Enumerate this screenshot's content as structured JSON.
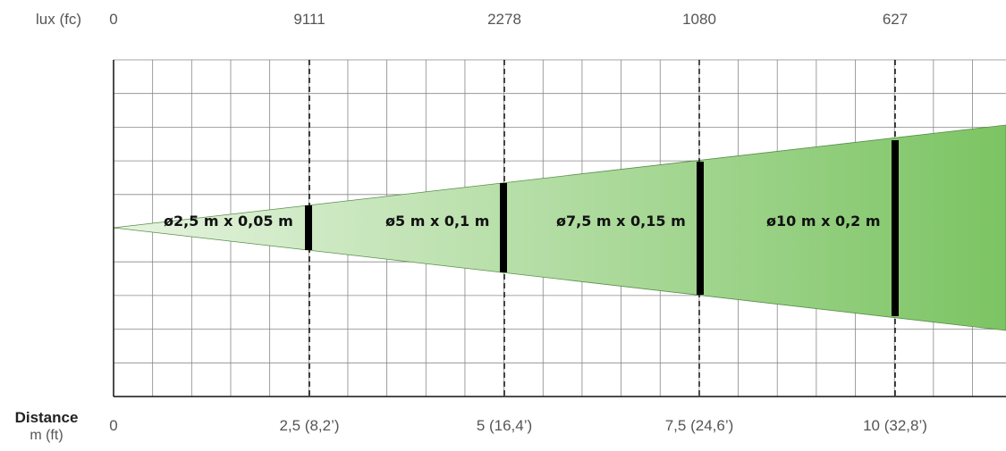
{
  "top_axis": {
    "label": "lux (fc)",
    "values": [
      "0",
      "9111",
      "2278",
      "1080",
      "627"
    ]
  },
  "bottom_axis": {
    "title": "Distance",
    "unit": "m (ft)",
    "values": [
      "0",
      "2,5  (8,2’)",
      "5  (16,4’)",
      "7,5 (24,6’)",
      "10  (32,8’)"
    ]
  },
  "beam_labels": [
    "ø2,5 m x 0,05 m",
    "ø5 m x 0,1 m",
    "ø7,5 m x 0,15 m",
    "ø10 m x 0,2 m"
  ],
  "colors": {
    "beam_start": "#e6f4e0",
    "beam_end": "#7cc463",
    "grid": "#888888",
    "marker": "#000000"
  }
}
